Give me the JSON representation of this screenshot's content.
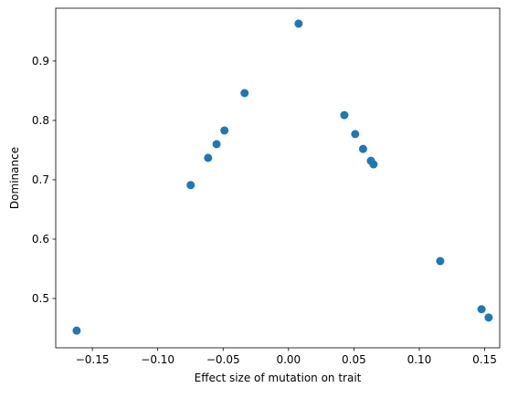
{
  "chart_data": {
    "type": "scatter",
    "x_label": "Effect size of mutation on trait",
    "y_label": "Dominance",
    "x": [
      -0.162,
      -0.0748,
      -0.0615,
      -0.055,
      -0.049,
      -0.0336,
      0.0077,
      0.0427,
      0.051,
      0.057,
      0.063,
      0.065,
      0.116,
      0.1476,
      0.153
    ],
    "values": [
      0.446,
      0.691,
      0.737,
      0.76,
      0.783,
      0.846,
      0.963,
      0.809,
      0.777,
      0.752,
      0.732,
      0.726,
      0.563,
      0.482,
      0.468
    ],
    "color": "#1f77b4",
    "xlim": [
      -0.178,
      0.1615
    ],
    "ylim": [
      0.417,
      0.989
    ],
    "xticks": [
      {
        "value": -0.15,
        "label": "−0.15"
      },
      {
        "value": -0.1,
        "label": "−0.10"
      },
      {
        "value": -0.05,
        "label": "−0.05"
      },
      {
        "value": 0,
        "label": "0.00"
      },
      {
        "value": 0.05,
        "label": "0.05"
      },
      {
        "value": 0.1,
        "label": "0.10"
      },
      {
        "value": 0.15,
        "label": "0.15"
      }
    ],
    "yticks": [
      0.5,
      0.6,
      0.7,
      0.8,
      0.9
    ],
    "grid": false
  }
}
